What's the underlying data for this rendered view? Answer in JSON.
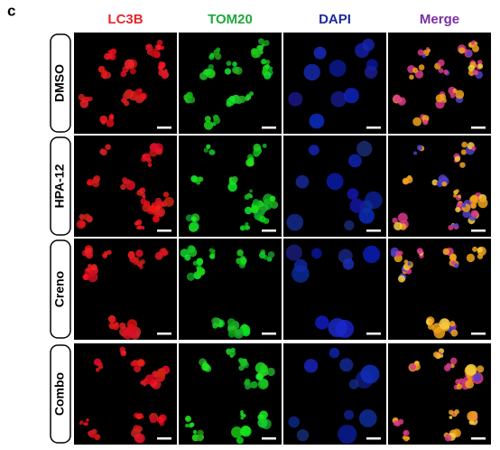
{
  "panel_label": "c",
  "columns": [
    "LC3B",
    "TOM20",
    "DAPI",
    "Merge"
  ],
  "rows": [
    "DMSO",
    "HPA-12",
    "Creno",
    "Combo"
  ]
}
